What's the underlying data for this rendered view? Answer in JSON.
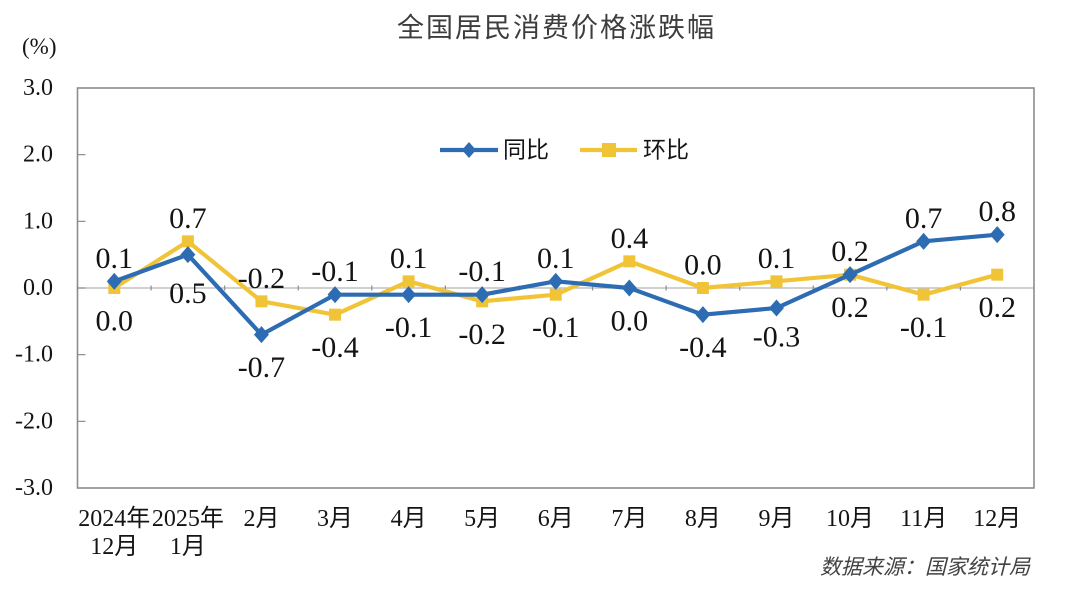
{
  "title": "全国居民消费价格涨跌幅",
  "unit_label": "(%)",
  "source": "数据来源：国家统计局",
  "chart_data": {
    "type": "line",
    "title": "全国居民消费价格涨跌幅",
    "ylabel": "(%)",
    "ylim": [
      -3.0,
      3.0
    ],
    "ytick_labels": [
      "3.0",
      "2.0",
      "1.0",
      "0.0",
      "-1.0",
      "-2.0",
      "-3.0"
    ],
    "grid": false,
    "legend_position": "top-center-inside",
    "categories": [
      "2024年\n12月",
      "2025年\n1月",
      "2月",
      "3月",
      "4月",
      "5月",
      "6月",
      "7月",
      "8月",
      "9月",
      "10月",
      "11月",
      "12月"
    ],
    "series": [
      {
        "name": "同比",
        "marker": "diamond",
        "color": "#2d6cb3",
        "values": [
          0.1,
          0.5,
          -0.7,
          -0.1,
          -0.1,
          -0.1,
          0.1,
          0.0,
          -0.4,
          -0.3,
          0.2,
          0.7,
          0.8
        ]
      },
      {
        "name": "环比",
        "marker": "square",
        "color": "#f1c437",
        "values": [
          0.0,
          0.7,
          -0.2,
          -0.4,
          0.1,
          -0.2,
          -0.1,
          0.4,
          0.0,
          0.1,
          0.2,
          -0.1,
          0.2
        ]
      }
    ],
    "source_note": "数据来源：国家统计局"
  }
}
